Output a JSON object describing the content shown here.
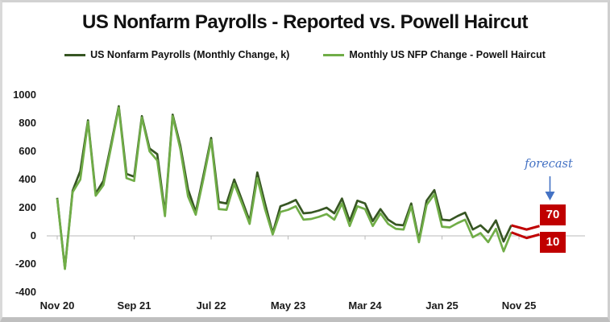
{
  "chart_data": {
    "type": "line",
    "title": "US Nonfarm Payrolls - Reported vs. Powell Haircut",
    "x_tick_labels": [
      "Nov 20",
      "Sep 21",
      "Jul 22",
      "May 23",
      "Mar 24",
      "Jan 25",
      "Nov 25"
    ],
    "x_tick_month_indices": [
      0,
      10,
      20,
      30,
      40,
      50,
      60
    ],
    "x_frequency": "monthly",
    "y_ticks": [
      1000,
      800,
      600,
      400,
      200,
      0,
      -200,
      -400
    ],
    "ylim": [
      -400,
      1000
    ],
    "grid": "zero-axis-only",
    "legend_position": "top",
    "series": [
      {
        "name": "US Nonfarm Payrolls (Monthly Change, k)",
        "color": "#375623",
        "values": [
          270,
          -230,
          320,
          460,
          820,
          300,
          390,
          650,
          920,
          440,
          420,
          850,
          620,
          580,
          160,
          860,
          640,
          330,
          170,
          430,
          695,
          240,
          230,
          400,
          255,
          105,
          450,
          230,
          20,
          210,
          230,
          255,
          160,
          165,
          180,
          200,
          160,
          265,
          105,
          250,
          230,
          105,
          190,
          115,
          80,
          75,
          230,
          -30,
          250,
          325,
          115,
          110,
          140,
          165,
          45,
          75,
          25,
          110,
          -40,
          75
        ],
        "forecast": 70
      },
      {
        "name": "Monthly US NFP Change - Powell Haircut",
        "color": "#70AD47",
        "values": [
          265,
          -235,
          310,
          400,
          810,
          285,
          360,
          630,
          910,
          410,
          390,
          840,
          600,
          535,
          140,
          850,
          615,
          280,
          150,
          405,
          680,
          190,
          185,
          370,
          230,
          85,
          410,
          190,
          10,
          170,
          185,
          210,
          115,
          120,
          135,
          155,
          115,
          230,
          70,
          210,
          190,
          70,
          160,
          85,
          50,
          45,
          210,
          -45,
          220,
          295,
          65,
          60,
          90,
          115,
          -10,
          20,
          -45,
          50,
          -110,
          25
        ],
        "forecast": 10
      }
    ],
    "annotation": {
      "label": "forecast",
      "color": "#4472C4"
    },
    "colors": {
      "forecast_red": "#C00000",
      "axis_line": "#C6C6C6",
      "tick": "#B9B9B9",
      "text": "#1A1A1A"
    }
  }
}
